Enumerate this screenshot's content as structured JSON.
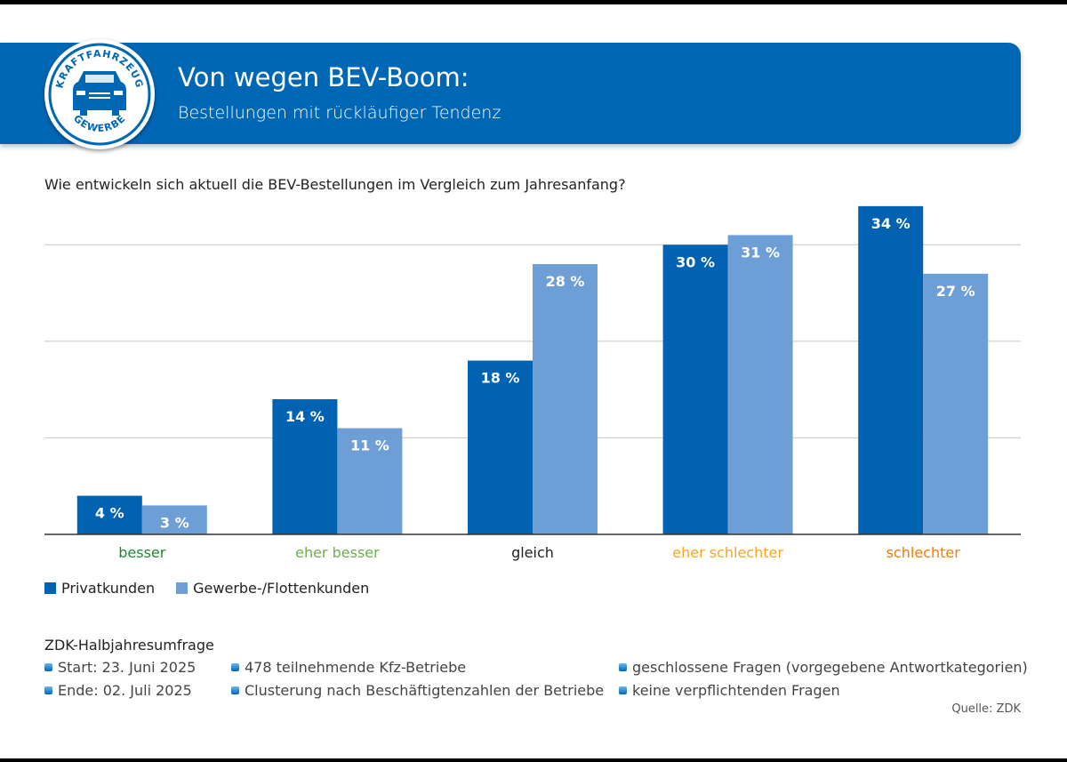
{
  "header": {
    "title": "Von wegen BEV-Boom:",
    "subtitle": "Bestellungen mit rückläufiger Tendenz",
    "logo_text_top": "KRAFTFAHRZEUG",
    "logo_text_bottom": "GEWERBE"
  },
  "chart_data": {
    "type": "bar",
    "title": "Wie entwickeln sich aktuell die BEV-Bestellungen im Vergleich zum Jahresanfang?",
    "categories": [
      "besser",
      "eher besser",
      "gleich",
      "eher schlechter",
      "schlechter"
    ],
    "category_colors": [
      "#1a8a2e",
      "#6ab04c",
      "#222222",
      "#f5a623",
      "#f07d00"
    ],
    "series": [
      {
        "name": "Privatkunden",
        "values": [
          4,
          14,
          18,
          30,
          34
        ],
        "color": "#0062b0"
      },
      {
        "name": "Gewerbe-/Flottenkunden",
        "values": [
          3,
          11,
          28,
          31,
          27
        ],
        "color": "#6d9ed6"
      }
    ],
    "value_suffix": " %",
    "ylim": [
      0,
      35
    ],
    "gridlines": [
      10,
      20,
      30
    ],
    "legend": "bottom-left"
  },
  "survey": {
    "heading": "ZDK-Halbjahresumfrage",
    "col1": [
      "Start: 23. Juni 2025",
      "Ende: 02. Juli 2025"
    ],
    "col2": [
      "478 teilnehmende Kfz-Betriebe",
      "Clusterung nach Beschäftigtenzahlen der Betriebe"
    ],
    "col3": [
      "geschlossene Fragen (vorgegebene Antwortkategorien)",
      "keine verpflichtenden Fragen"
    ]
  },
  "source": "Quelle: ZDK"
}
